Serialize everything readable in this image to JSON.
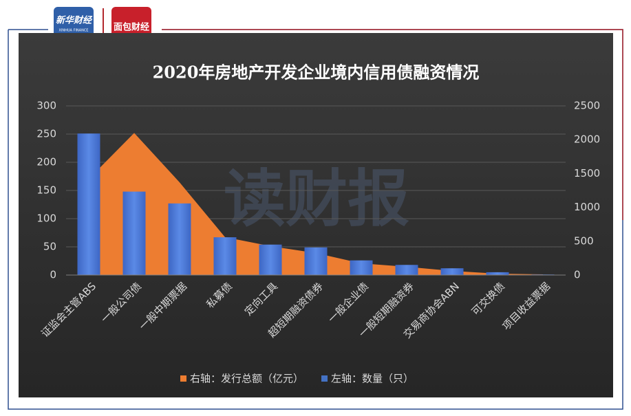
{
  "header": {
    "logo_text": "新华财经",
    "logo_subtext": "XINHUA FINANCE",
    "logo2_text": "面包财经"
  },
  "watermark": "读财报",
  "chart_data": {
    "type": "combo",
    "title": "2020年房地产开发企业境内信用债融资情况",
    "categories": [
      "证监会主管ABS",
      "一般公司债",
      "一般中期票据",
      "私募债",
      "定向工具",
      "超短期融资债券",
      "一般企业债",
      "一般短期融资券",
      "交易商协会ABN",
      "可交换债",
      "项目收益票据"
    ],
    "series": [
      {
        "name": "右轴：发行总额（亿元）",
        "type": "area",
        "axis": "y2",
        "color": "#ed7d31",
        "values": [
          1420,
          2100,
          1370,
          560,
          427,
          325,
          173,
          122,
          61,
          20,
          10
        ]
      },
      {
        "name": "左轴：数量（只）",
        "type": "bar",
        "color": "#4472c4",
        "values": [
          251,
          148,
          127,
          67,
          54,
          49,
          26,
          18,
          12,
          5,
          1
        ]
      }
    ],
    "ylim": [
      0,
      300
    ],
    "yticks": [
      0,
      50,
      100,
      150,
      200,
      250,
      300
    ],
    "y2lim": [
      0,
      2500
    ],
    "y2ticks": [
      0,
      500,
      1000,
      1500,
      2000,
      2500
    ],
    "grid": true,
    "legend": "bottom"
  }
}
